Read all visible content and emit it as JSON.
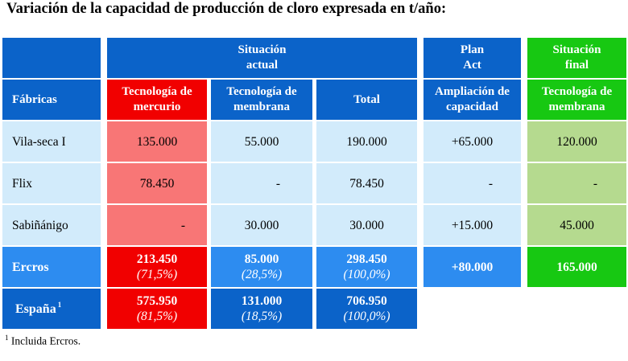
{
  "title": "Variación de la capacidad de producción de cloro expresada en t/año:",
  "headers": {
    "situacion_actual": [
      "Situación",
      "actual"
    ],
    "plan_act": [
      "Plan",
      "Act"
    ],
    "situacion_final": [
      "Situación",
      "final"
    ],
    "fabricas": "Fábricas",
    "tec_mercurio": [
      "Tecnología de",
      "mercurio"
    ],
    "tec_membrana": [
      "Tecnología de",
      "membrana"
    ],
    "total": "Total",
    "ampliacion": [
      "Ampliación de",
      "capacidad"
    ],
    "final_membrana": [
      "Tecnología de",
      "membrana"
    ]
  },
  "rows": [
    {
      "name": "Vila-seca I",
      "mercurio": "135.000",
      "membrana": "55.000",
      "total": "190.000",
      "ampliacion": "+65.000",
      "final": "120.000"
    },
    {
      "name": "Flix",
      "mercurio": "78.450",
      "membrana": "-",
      "total": "78.450",
      "ampliacion": "-",
      "final": "-"
    },
    {
      "name": "Sabiñánigo",
      "mercurio": "-",
      "membrana": "30.000",
      "total": "30.000",
      "ampliacion": "+15.000",
      "final": "45.000"
    }
  ],
  "ercros": {
    "name": "Ercros",
    "mercurio": "213.450",
    "mercurio_pct": "(71,5%)",
    "membrana": "85.000",
    "membrana_pct": "(28,5%)",
    "total": "298.450",
    "total_pct": "(100,0%)",
    "ampliacion": "+80.000",
    "final": "165.000"
  },
  "espana": {
    "name": "España",
    "sup": "1",
    "mercurio": "575.950",
    "mercurio_pct": "(81,5%)",
    "membrana": "131.000",
    "membrana_pct": "(18,5%)",
    "total": "706.950",
    "total_pct": "(100,0%)"
  },
  "footnote": {
    "sup": "1",
    "text": "Incluida Ercros."
  }
}
